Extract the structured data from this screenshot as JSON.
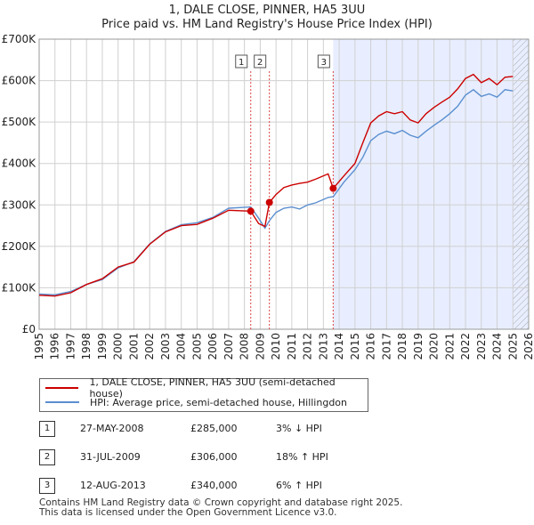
{
  "chart_data": {
    "type": "line",
    "title": "1, DALE CLOSE, PINNER, HA5 3UU",
    "subtitle": "Price paid vs. HM Land Registry's House Price Index (HPI)",
    "xlim": [
      1995,
      2026
    ],
    "ylim": [
      0,
      700000
    ],
    "x_ticks": [
      "1995",
      "1996",
      "1997",
      "1998",
      "1999",
      "2000",
      "2001",
      "2002",
      "2003",
      "2004",
      "2005",
      "2006",
      "2007",
      "2008",
      "2009",
      "2010",
      "2011",
      "2012",
      "2013",
      "2014",
      "2015",
      "2016",
      "2017",
      "2018",
      "2019",
      "2020",
      "2021",
      "2022",
      "2023",
      "2024",
      "2025",
      "2026"
    ],
    "y_ticks": [
      {
        "value": 0,
        "label": "£0"
      },
      {
        "value": 100000,
        "label": "£100K"
      },
      {
        "value": 200000,
        "label": "£200K"
      },
      {
        "value": 300000,
        "label": "£300K"
      },
      {
        "value": 400000,
        "label": "£400K"
      },
      {
        "value": 500000,
        "label": "£500K"
      },
      {
        "value": 600000,
        "label": "£600K"
      },
      {
        "value": 700000,
        "label": "£700K"
      }
    ],
    "shaded_from": 2013.62,
    "forecast_from": 2025.0,
    "series": [
      {
        "name": "1, DALE CLOSE, PINNER, HA5 3UU (semi-detached house)",
        "color": "#cc0000",
        "points": [
          [
            1995,
            82000
          ],
          [
            1996,
            80000
          ],
          [
            1997,
            88000
          ],
          [
            1998,
            108000
          ],
          [
            1999,
            122000
          ],
          [
            2000,
            150000
          ],
          [
            2001,
            162000
          ],
          [
            2002,
            205000
          ],
          [
            2003,
            235000
          ],
          [
            2004,
            250000
          ],
          [
            2005,
            253000
          ],
          [
            2006,
            268000
          ],
          [
            2007,
            287000
          ],
          [
            2008.4,
            285000
          ],
          [
            2008.9,
            255000
          ],
          [
            2009.3,
            248000
          ],
          [
            2009.58,
            306000
          ],
          [
            2010,
            325000
          ],
          [
            2010.5,
            342000
          ],
          [
            2011,
            348000
          ],
          [
            2011.5,
            352000
          ],
          [
            2012,
            355000
          ],
          [
            2012.5,
            362000
          ],
          [
            2013.3,
            375000
          ],
          [
            2013.62,
            340000
          ],
          [
            2014.3,
            370000
          ],
          [
            2015,
            400000
          ],
          [
            2015.5,
            450000
          ],
          [
            2016,
            498000
          ],
          [
            2016.5,
            515000
          ],
          [
            2017,
            525000
          ],
          [
            2017.5,
            520000
          ],
          [
            2018,
            525000
          ],
          [
            2018.5,
            505000
          ],
          [
            2019,
            498000
          ],
          [
            2019.5,
            520000
          ],
          [
            2020,
            535000
          ],
          [
            2020.5,
            548000
          ],
          [
            2021,
            560000
          ],
          [
            2021.5,
            580000
          ],
          [
            2022,
            605000
          ],
          [
            2022.5,
            615000
          ],
          [
            2023,
            595000
          ],
          [
            2023.5,
            605000
          ],
          [
            2024,
            590000
          ],
          [
            2024.5,
            608000
          ],
          [
            2025,
            610000
          ]
        ]
      },
      {
        "name": "HPI: Average price, semi-detached house, Hillingdon",
        "color": "#5b8fd0",
        "points": [
          [
            1995,
            85000
          ],
          [
            1996,
            83000
          ],
          [
            1997,
            91000
          ],
          [
            1998,
            108000
          ],
          [
            1999,
            120000
          ],
          [
            2000,
            148000
          ],
          [
            2001,
            163000
          ],
          [
            2002,
            206000
          ],
          [
            2003,
            236000
          ],
          [
            2004,
            252000
          ],
          [
            2005,
            257000
          ],
          [
            2006,
            270000
          ],
          [
            2007,
            292000
          ],
          [
            2008.4,
            295000
          ],
          [
            2008.9,
            268000
          ],
          [
            2009.3,
            244000
          ],
          [
            2009.58,
            262000
          ],
          [
            2010,
            282000
          ],
          [
            2010.5,
            292000
          ],
          [
            2011,
            295000
          ],
          [
            2011.5,
            290000
          ],
          [
            2012,
            300000
          ],
          [
            2012.5,
            305000
          ],
          [
            2013.3,
            318000
          ],
          [
            2013.62,
            320000
          ],
          [
            2014.3,
            355000
          ],
          [
            2015,
            385000
          ],
          [
            2015.5,
            415000
          ],
          [
            2016,
            455000
          ],
          [
            2016.5,
            470000
          ],
          [
            2017,
            478000
          ],
          [
            2017.5,
            472000
          ],
          [
            2018,
            480000
          ],
          [
            2018.5,
            468000
          ],
          [
            2019,
            462000
          ],
          [
            2019.5,
            478000
          ],
          [
            2020,
            492000
          ],
          [
            2020.5,
            505000
          ],
          [
            2021,
            520000
          ],
          [
            2021.5,
            538000
          ],
          [
            2022,
            565000
          ],
          [
            2022.5,
            578000
          ],
          [
            2023,
            562000
          ],
          [
            2023.5,
            568000
          ],
          [
            2024,
            560000
          ],
          [
            2024.5,
            578000
          ],
          [
            2025,
            575000
          ]
        ]
      }
    ],
    "sales": [
      {
        "num": "1",
        "x": 2008.4,
        "value": 285000
      },
      {
        "num": "2",
        "x": 2009.58,
        "value": 306000
      },
      {
        "num": "3",
        "x": 2013.62,
        "value": 340000
      }
    ]
  },
  "legend": [
    {
      "label": "1, DALE CLOSE, PINNER, HA5 3UU (semi-detached house)",
      "color": "#cc0000"
    },
    {
      "label": "HPI: Average price, semi-detached house, Hillingdon",
      "color": "#5b8fd0"
    }
  ],
  "sales_table": [
    {
      "num": "1",
      "date": "27-MAY-2008",
      "price": "£285,000",
      "hpi": "3% ↓ HPI"
    },
    {
      "num": "2",
      "date": "31-JUL-2009",
      "price": "£306,000",
      "hpi": "18% ↑ HPI"
    },
    {
      "num": "3",
      "date": "12-AUG-2013",
      "price": "£340,000",
      "hpi": "6% ↑ HPI"
    }
  ],
  "footer": {
    "line1": "Contains HM Land Registry data © Crown copyright and database right 2025.",
    "line2": "This data is licensed under the Open Government Licence v3.0."
  }
}
